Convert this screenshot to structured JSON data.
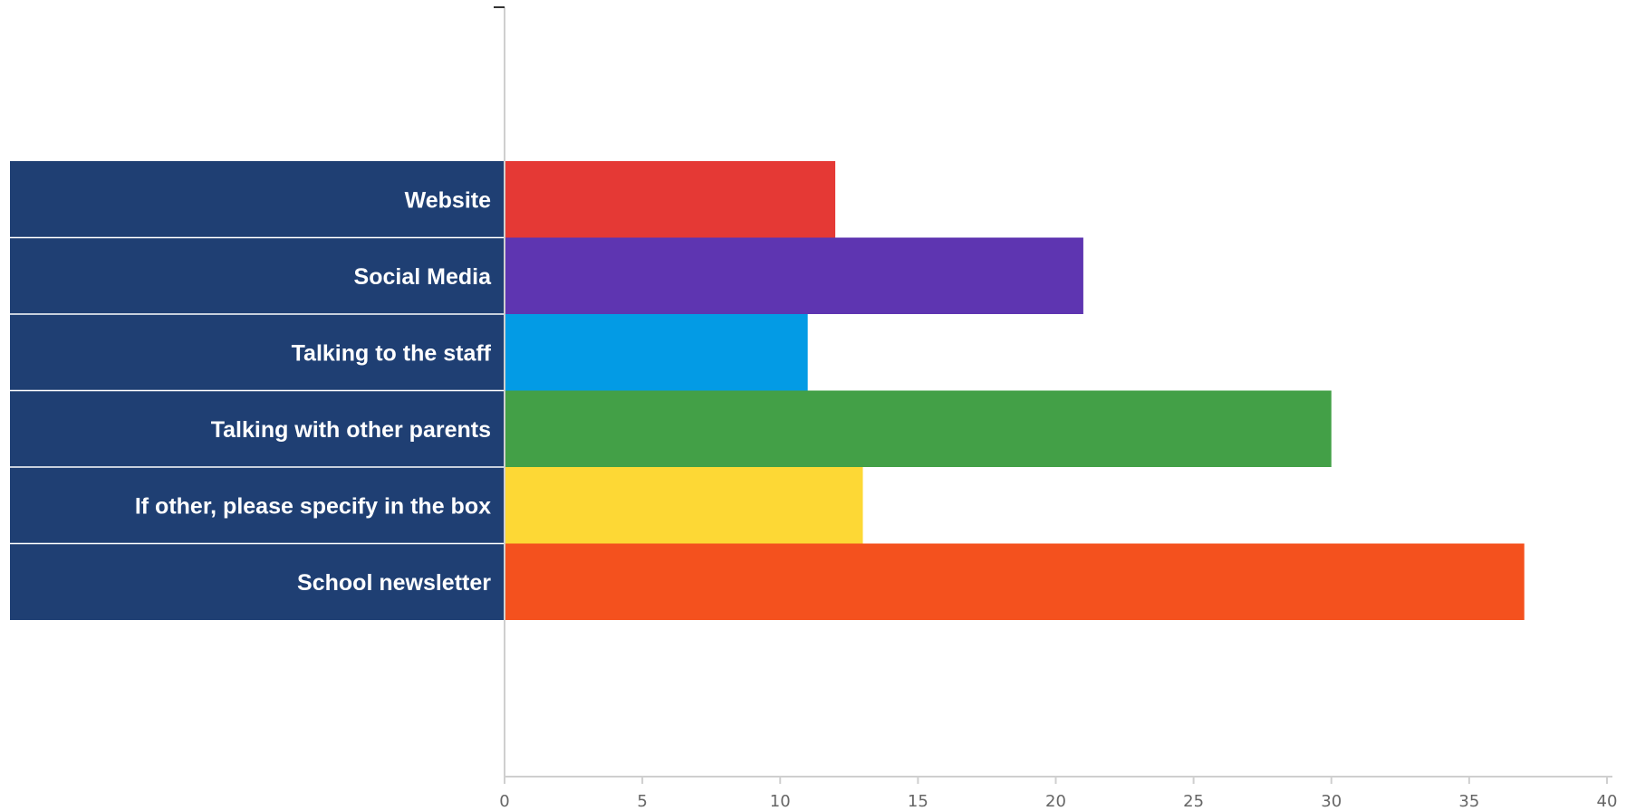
{
  "chart_data": {
    "type": "bar",
    "orientation": "horizontal",
    "title": "",
    "xlabel": "",
    "ylabel": "",
    "categories": [
      "Website",
      "Social Media",
      "Talking to the staff",
      "Talking with other parents",
      "If other, please specify in the box",
      "School newsletter"
    ],
    "values": [
      12,
      21,
      11,
      30,
      13,
      37
    ],
    "colors": [
      "#e53935",
      "#5e35b1",
      "#039be5",
      "#43a047",
      "#fdd835",
      "#f4511e"
    ],
    "xlim": [
      0,
      40
    ],
    "xticks": [
      "0",
      "5",
      "10",
      "15",
      "20",
      "25",
      "30",
      "35",
      "40"
    ],
    "label_background": "#1f3f73",
    "grid": false,
    "legend": "none"
  }
}
